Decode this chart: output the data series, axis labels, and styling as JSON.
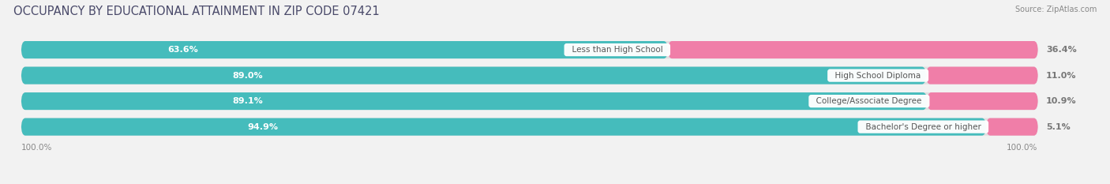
{
  "title": "OCCUPANCY BY EDUCATIONAL ATTAINMENT IN ZIP CODE 07421",
  "source": "Source: ZipAtlas.com",
  "categories": [
    "Less than High School",
    "High School Diploma",
    "College/Associate Degree",
    "Bachelor's Degree or higher"
  ],
  "owner_pct": [
    63.6,
    89.0,
    89.1,
    94.9
  ],
  "renter_pct": [
    36.4,
    11.0,
    10.9,
    5.1
  ],
  "owner_color": "#45BCBC",
  "renter_color": "#F07EA8",
  "bg_color": "#f2f2f2",
  "bar_bg_color": "#e0e0e0",
  "bar_height": 0.68,
  "title_fontsize": 10.5,
  "label_fontsize": 8,
  "tick_fontsize": 7.5,
  "source_fontsize": 7,
  "legend_fontsize": 8,
  "left_axis_label": "100.0%",
  "right_axis_label": "100.0%"
}
